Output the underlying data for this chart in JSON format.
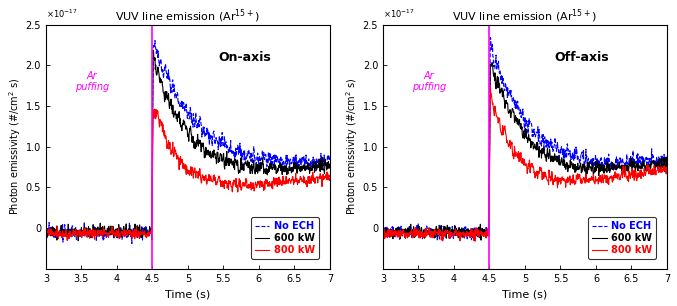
{
  "title": "VUV line emission ($\\mathrm{Ar^{15+}}$)",
  "xlabel": "Time (s)",
  "ylabel": "Photon emissivity (#/cm$^2$ s)",
  "xlim": [
    3,
    7
  ],
  "ylim": [
    -5e-18,
    2.5e-17
  ],
  "yticks": [
    0,
    5e-18,
    1e-17,
    1.5e-17,
    2e-17,
    2.5e-17
  ],
  "xticks": [
    3,
    3.5,
    4,
    4.5,
    5,
    5.5,
    6,
    6.5,
    7
  ],
  "puffing_line_x": 4.5,
  "scale_factor": 1e-17,
  "panel_labels": [
    "On-axis",
    "Off-axis"
  ],
  "ar_puffing_color": "magenta",
  "legend_labels": [
    "No ECH",
    "600 kW",
    "800 kW"
  ],
  "legend_colors": [
    "blue",
    "black",
    "red"
  ],
  "legend_linestyles": [
    "--",
    "-",
    "-"
  ],
  "seed_on": 42,
  "seed_off": 99
}
